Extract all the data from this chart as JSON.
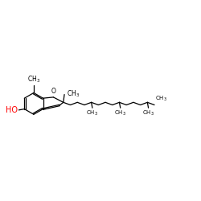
{
  "bg_color": "#ffffff",
  "bond_color": "#000000",
  "oh_color": "#ff0000",
  "atom_color": "#000000",
  "line_width": 0.9,
  "font_size": 5.5,
  "fig_width": 2.5,
  "fig_height": 2.5,
  "dpi": 100
}
